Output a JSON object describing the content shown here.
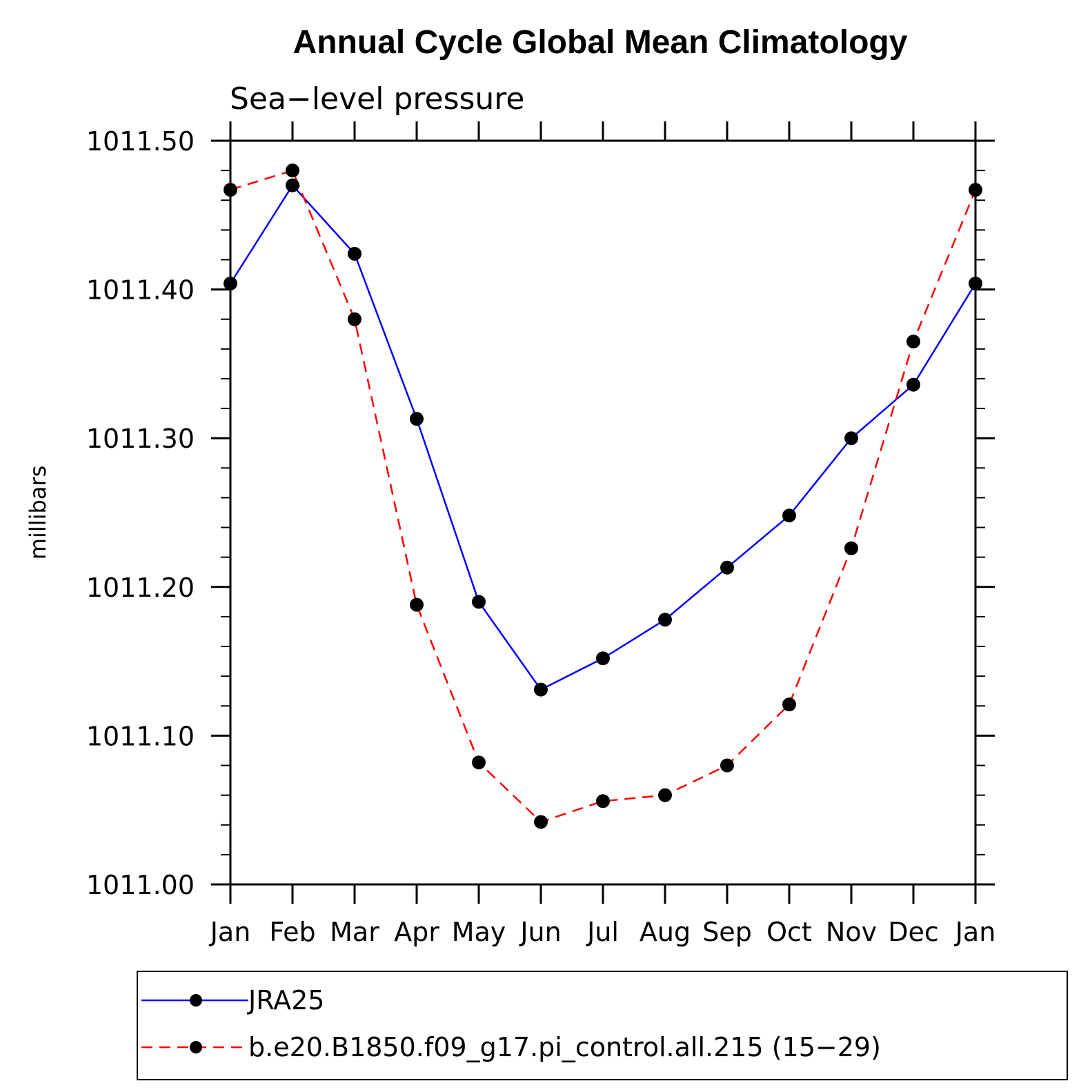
{
  "chart_data": {
    "type": "line",
    "title": "Annual Cycle Global Mean Climatology",
    "subtitle": "Sea−level pressure",
    "xlabel": "",
    "ylabel": "millibars",
    "categories": [
      "Jan",
      "Feb",
      "Mar",
      "Apr",
      "May",
      "Jun",
      "Jul",
      "Aug",
      "Sep",
      "Oct",
      "Nov",
      "Dec",
      "Jan"
    ],
    "ylim": [
      1011.0,
      1011.5
    ],
    "y_ticks": [
      "1011.00",
      "1011.10",
      "1011.20",
      "1011.30",
      "1011.40",
      "1011.50"
    ],
    "grid": false,
    "legend_position": "bottom",
    "series": [
      {
        "name": "JRA25",
        "color": "#0000ff",
        "dash": "solid",
        "values": [
          1011.404,
          1011.47,
          1011.424,
          1011.313,
          1011.19,
          1011.131,
          1011.152,
          1011.178,
          1011.213,
          1011.248,
          1011.3,
          1011.336,
          1011.404
        ]
      },
      {
        "name": "b.e20.B1850.f09_g17.pi_control.all.215 (15−29)",
        "color": "#ff0000",
        "dash": "dashed",
        "values": [
          1011.467,
          1011.48,
          1011.38,
          1011.188,
          1011.082,
          1011.042,
          1011.056,
          1011.06,
          1011.08,
          1011.121,
          1011.226,
          1011.365,
          1011.467
        ]
      }
    ]
  }
}
